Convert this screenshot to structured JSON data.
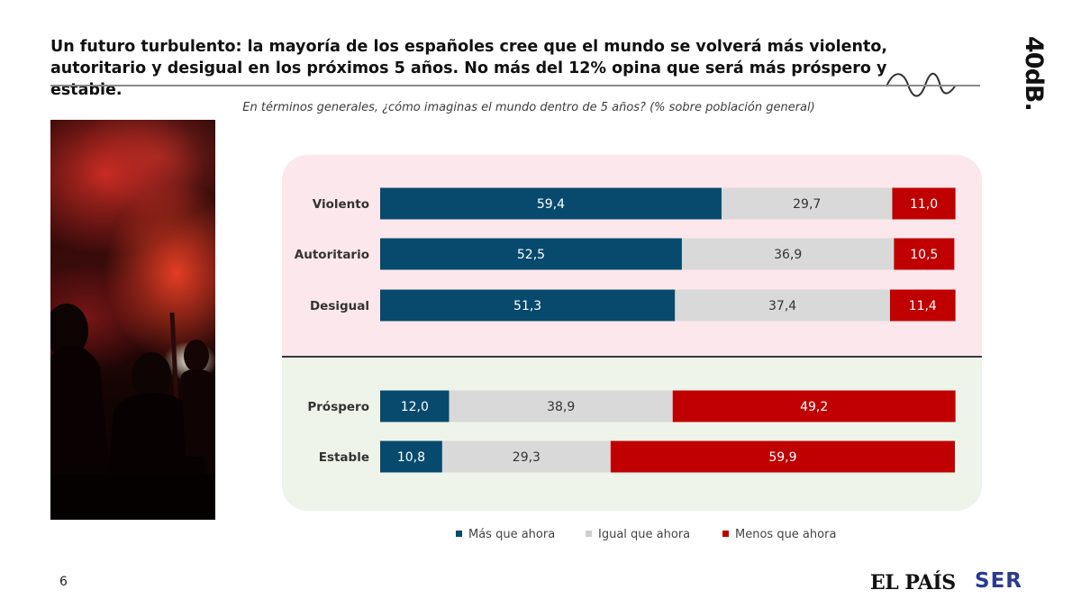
{
  "header": {
    "title": "Un futuro turbulento: la mayoría de los españoles cree que el mundo se volverá más violento, autoritario y desigual en los próximos 5 años. No más del 12% opina que será más próspero y estable.",
    "brand": "40dB."
  },
  "subtitle": "En términos generales, ¿cómo imaginas el mundo dentro de 5 años? (% sobre población general)",
  "page_number": "6",
  "logos": {
    "elpais": "EL PAÍS",
    "ser": "SER"
  },
  "colors": {
    "mas": "#074a6e",
    "igual": "#d9d9d9",
    "menos": "#c00000",
    "panel_top": "#fce8ec",
    "panel_bottom": "#eef4ea"
  },
  "chart_data": {
    "type": "bar",
    "orientation": "horizontal",
    "stacked": true,
    "normalized_to": 100,
    "title": "En términos generales, ¿cómo imaginas el mundo dentro de 5 años? (% sobre población general)",
    "categories": [
      "Violento",
      "Autoritario",
      "Desigual",
      "Próspero",
      "Estable"
    ],
    "groups": [
      {
        "name": "negative-outlook",
        "categories": [
          "Violento",
          "Autoritario",
          "Desigual"
        ]
      },
      {
        "name": "positive-outlook",
        "categories": [
          "Próspero",
          "Estable"
        ]
      }
    ],
    "series": [
      {
        "name": "Más que ahora",
        "color": "#074a6e",
        "text_color": "#ffffff",
        "values": [
          59.4,
          52.5,
          51.3,
          12.0,
          10.8
        ],
        "labels": [
          "59,4",
          "52,5",
          "51,3",
          "12,0",
          "10,8"
        ]
      },
      {
        "name": "Igual que ahora",
        "color": "#d9d9d9",
        "text_color": "#333333",
        "values": [
          29.7,
          36.9,
          37.4,
          38.9,
          29.3
        ],
        "labels": [
          "29,7",
          "36,9",
          "37,4",
          "38,9",
          "29,3"
        ]
      },
      {
        "name": "Menos que ahora",
        "color": "#c00000",
        "text_color": "#ffffff",
        "values": [
          11.0,
          10.5,
          11.4,
          49.2,
          59.9
        ],
        "labels": [
          "11,0",
          "10,5",
          "11,4",
          "49,2",
          "59,9"
        ]
      }
    ],
    "xlim": [
      0,
      100
    ],
    "legend_position": "bottom"
  }
}
